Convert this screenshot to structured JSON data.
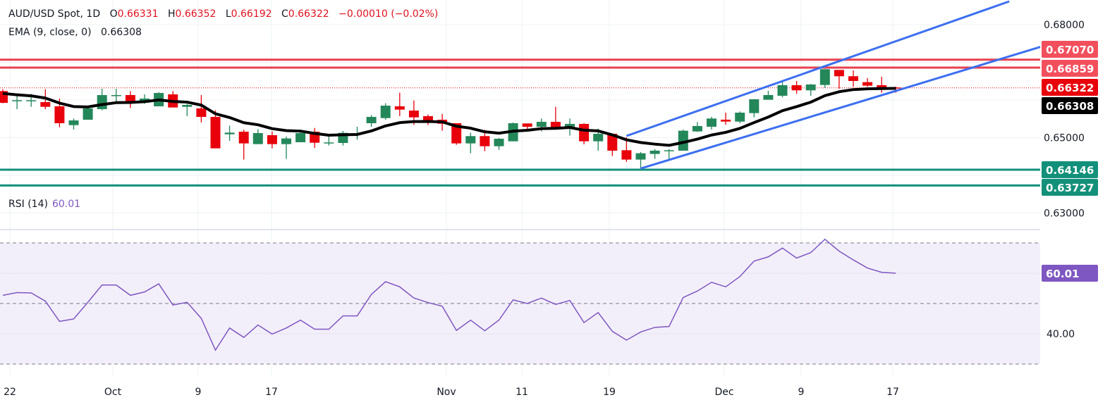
{
  "header": {
    "symbol": "AUD/USD Spot, 1D",
    "open_label": "O",
    "open": "0.66331",
    "high_label": "H",
    "high": "0.66352",
    "low_label": "L",
    "low": "0.66192",
    "close_label": "C",
    "close": "0.66322",
    "change": "−0.00010 (−0.02%)",
    "ema_label": "EMA (9, close, 0)",
    "ema_value": "0.66308",
    "rsi_label": "RSI (14)",
    "rsi_value": "60.01"
  },
  "colors": {
    "up": "#23875a",
    "down": "#e8000b",
    "ema": "#000000",
    "resistance": "#e8404f",
    "support": "#13907a",
    "channel": "#3c6ff0",
    "rsi_line": "#7e57c2",
    "rsi_band": "#f3effa",
    "last_price": "#e8000b"
  },
  "chart_data": [
    {
      "type": "candlestick",
      "title": "AUD/USD Spot, 1D",
      "ylim": [
        0.6245,
        0.6865
      ],
      "grid": true,
      "y_ticks": [
        "0.68000",
        "0.65000",
        "0.63000"
      ],
      "x_ticks": [
        "22",
        "Oct",
        "9",
        "17",
        "Nov",
        "11",
        "19",
        "Dec",
        "9",
        "17"
      ],
      "ohlc": [
        [
          0.66235,
          0.66285,
          0.65911,
          0.65923
        ],
        [
          0.65986,
          0.6616,
          0.65755,
          0.65992
        ],
        [
          0.65986,
          0.6616,
          0.65817,
          0.65992
        ],
        [
          0.65942,
          0.66285,
          0.65755,
          0.65817
        ],
        [
          0.6583,
          0.66036,
          0.65275,
          0.65381
        ],
        [
          0.65331,
          0.65506,
          0.65212,
          0.65456
        ],
        [
          0.65474,
          0.65817,
          0.65474,
          0.65774
        ],
        [
          0.65755,
          0.66298,
          0.65724,
          0.66129
        ],
        [
          0.66129,
          0.66298,
          0.65942,
          0.66129
        ],
        [
          0.66129,
          0.66235,
          0.65786,
          0.65955
        ],
        [
          0.6593,
          0.66148,
          0.65898,
          0.66036
        ],
        [
          0.6583,
          0.66204,
          0.6583,
          0.66185
        ],
        [
          0.66148,
          0.66235,
          0.65799,
          0.65799
        ],
        [
          0.65817,
          0.65898,
          0.65568,
          0.65867
        ],
        [
          0.65774,
          0.66129,
          0.654,
          0.65549
        ],
        [
          0.65549,
          0.65724,
          0.64714,
          0.64714
        ],
        [
          0.65088,
          0.65318,
          0.64913,
          0.65131
        ],
        [
          0.65156,
          0.65206,
          0.64414,
          0.64845
        ],
        [
          0.64826,
          0.65225,
          0.64826,
          0.65119
        ],
        [
          0.65063,
          0.65163,
          0.64714,
          0.64826
        ],
        [
          0.64826,
          0.65026,
          0.64433,
          0.64976
        ],
        [
          0.64876,
          0.65212,
          0.64876,
          0.65119
        ],
        [
          0.65156,
          0.65256,
          0.64726,
          0.64863
        ],
        [
          0.6487,
          0.65039,
          0.64788,
          0.64871
        ],
        [
          0.64857,
          0.65175,
          0.64788,
          0.65125
        ],
        [
          0.65113,
          0.65287,
          0.64944,
          0.65114
        ],
        [
          0.65381,
          0.65599,
          0.65287,
          0.65549
        ],
        [
          0.65518,
          0.65911,
          0.65474,
          0.65848
        ],
        [
          0.6583,
          0.66191,
          0.65568,
          0.65743
        ],
        [
          0.65717,
          0.65986,
          0.65337,
          0.65537
        ],
        [
          0.65568,
          0.65612,
          0.65337,
          0.65443
        ],
        [
          0.65474,
          0.6563,
          0.65181,
          0.65368
        ],
        [
          0.65381,
          0.65381,
          0.64807,
          0.64845
        ],
        [
          0.64845,
          0.65131,
          0.64583,
          0.65039
        ],
        [
          0.65039,
          0.65206,
          0.64639,
          0.6477
        ],
        [
          0.6477,
          0.64988,
          0.64676,
          0.64969
        ],
        [
          0.64901,
          0.654,
          0.64901,
          0.65381
        ],
        [
          0.65375,
          0.65375,
          0.65163,
          0.65287
        ],
        [
          0.65287,
          0.65506,
          0.65163,
          0.65418
        ],
        [
          0.65418,
          0.65817,
          0.65237,
          0.65275
        ],
        [
          0.65276,
          0.65506,
          0.65051,
          0.65363
        ],
        [
          0.65363,
          0.65382,
          0.6482,
          0.64901
        ],
        [
          0.64901,
          0.65238,
          0.64652,
          0.65101
        ],
        [
          0.65101,
          0.65101,
          0.64509,
          0.64652
        ],
        [
          0.64664,
          0.65007,
          0.64353,
          0.64415
        ],
        [
          0.64415,
          0.64615,
          0.64178,
          0.64583
        ],
        [
          0.64565,
          0.64696,
          0.64434,
          0.64652
        ],
        [
          0.64646,
          0.64696,
          0.64384,
          0.64664
        ],
        [
          0.64652,
          0.65213,
          0.64652,
          0.65182
        ],
        [
          0.65163,
          0.65413,
          0.65151,
          0.65307
        ],
        [
          0.65288,
          0.6555,
          0.65213,
          0.65506
        ],
        [
          0.65475,
          0.65662,
          0.65338,
          0.65425
        ],
        [
          0.65425,
          0.65693,
          0.65382,
          0.65662
        ],
        [
          0.6565,
          0.66018,
          0.65537,
          0.66018
        ],
        [
          0.66005,
          0.66242,
          0.66005,
          0.6613
        ],
        [
          0.66111,
          0.66485,
          0.66068,
          0.66392
        ],
        [
          0.66392,
          0.66504,
          0.66161,
          0.66255
        ],
        [
          0.66255,
          0.66423,
          0.66111,
          0.6641
        ],
        [
          0.66398,
          0.66816,
          0.66317,
          0.66816
        ],
        [
          0.66797,
          0.66797,
          0.66298,
          0.66629
        ],
        [
          0.66629,
          0.66785,
          0.66348,
          0.66504
        ],
        [
          0.66473,
          0.66579,
          0.66348,
          0.66379
        ],
        [
          0.66392,
          0.66616,
          0.66192,
          0.6633
        ],
        [
          0.66331,
          0.66352,
          0.66192,
          0.66322
        ]
      ],
      "ema_period": 9,
      "ema_last": 0.66308,
      "last_price": 0.66322,
      "horizontal_levels": [
        {
          "price": 0.6707,
          "label": "0.67070",
          "kind": "resistance"
        },
        {
          "price": 0.66859,
          "label": "0.66859",
          "kind": "resistance"
        },
        {
          "price": 0.64146,
          "label": "0.64146",
          "kind": "support"
        },
        {
          "price": 0.63727,
          "label": "0.63727",
          "kind": "support"
        }
      ],
      "price_tags": [
        {
          "label": "0.66322",
          "kind": "last"
        },
        {
          "label": "0.66308",
          "kind": "ema"
        }
      ],
      "channel": {
        "upper": [
          {
            "bar": 44,
            "price": 0.65044
          },
          {
            "bar": 71,
            "price": 0.68618
          }
        ],
        "lower": [
          {
            "bar": 45,
            "price": 0.64178
          },
          {
            "bar": 73.3,
            "price": 0.6742
          }
        ]
      }
    },
    {
      "type": "line",
      "title": "RSI (14)",
      "ylim": [
        27,
        75
      ],
      "levels": [
        70,
        50,
        30
      ],
      "y_ticks": [
        "40.00"
      ],
      "last_label": "60.01",
      "values": [
        52.7,
        53.6,
        53.5,
        50.8,
        44.1,
        44.9,
        50.4,
        56.1,
        56.1,
        52.7,
        53.8,
        56.5,
        49.5,
        50.4,
        45.1,
        34.6,
        41.9,
        38.8,
        42.9,
        39.9,
        41.9,
        44.5,
        41.5,
        41.5,
        45.9,
        45.9,
        53.0,
        57.2,
        55.5,
        51.8,
        50.3,
        49.1,
        41.1,
        44.5,
        41.0,
        44.5,
        51.2,
        50.0,
        51.8,
        49.7,
        51.0,
        43.7,
        47.0,
        40.8,
        37.9,
        40.6,
        42.1,
        42.4,
        52.0,
        54.1,
        57.0,
        55.5,
        58.9,
        64.0,
        65.4,
        68.3,
        65.0,
        66.8,
        71.2,
        67.3,
        64.4,
        61.7,
        60.3,
        60.01
      ]
    }
  ]
}
